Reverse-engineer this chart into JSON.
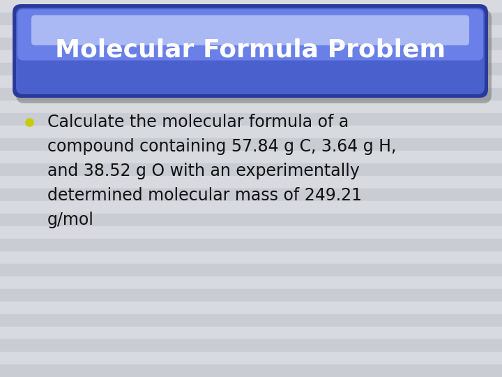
{
  "title": "Molecular Formula Problem",
  "bullet_text_lines": [
    "Calculate the molecular formula of a",
    "compound containing 57.84 g C, 3.64 g H,",
    "and 38.52 g O with an experimentally",
    "determined molecular mass of 249.21",
    "g/mol"
  ],
  "stripe_color_light": "#d8dae0",
  "stripe_color_dark": "#caccd4",
  "title_bg_main": "#4a60cc",
  "title_bg_dark": "#2a3a9a",
  "title_bg_light": "#6a80e8",
  "title_highlight": "#90a8f0",
  "title_shadow": "#555555",
  "title_edge": "#7888d8",
  "title_text_color": "#ffffff",
  "bullet_color": "#c8cc00",
  "body_text_color": "#111111",
  "title_fontsize": 26,
  "body_fontsize": 17,
  "n_stripes": 30
}
